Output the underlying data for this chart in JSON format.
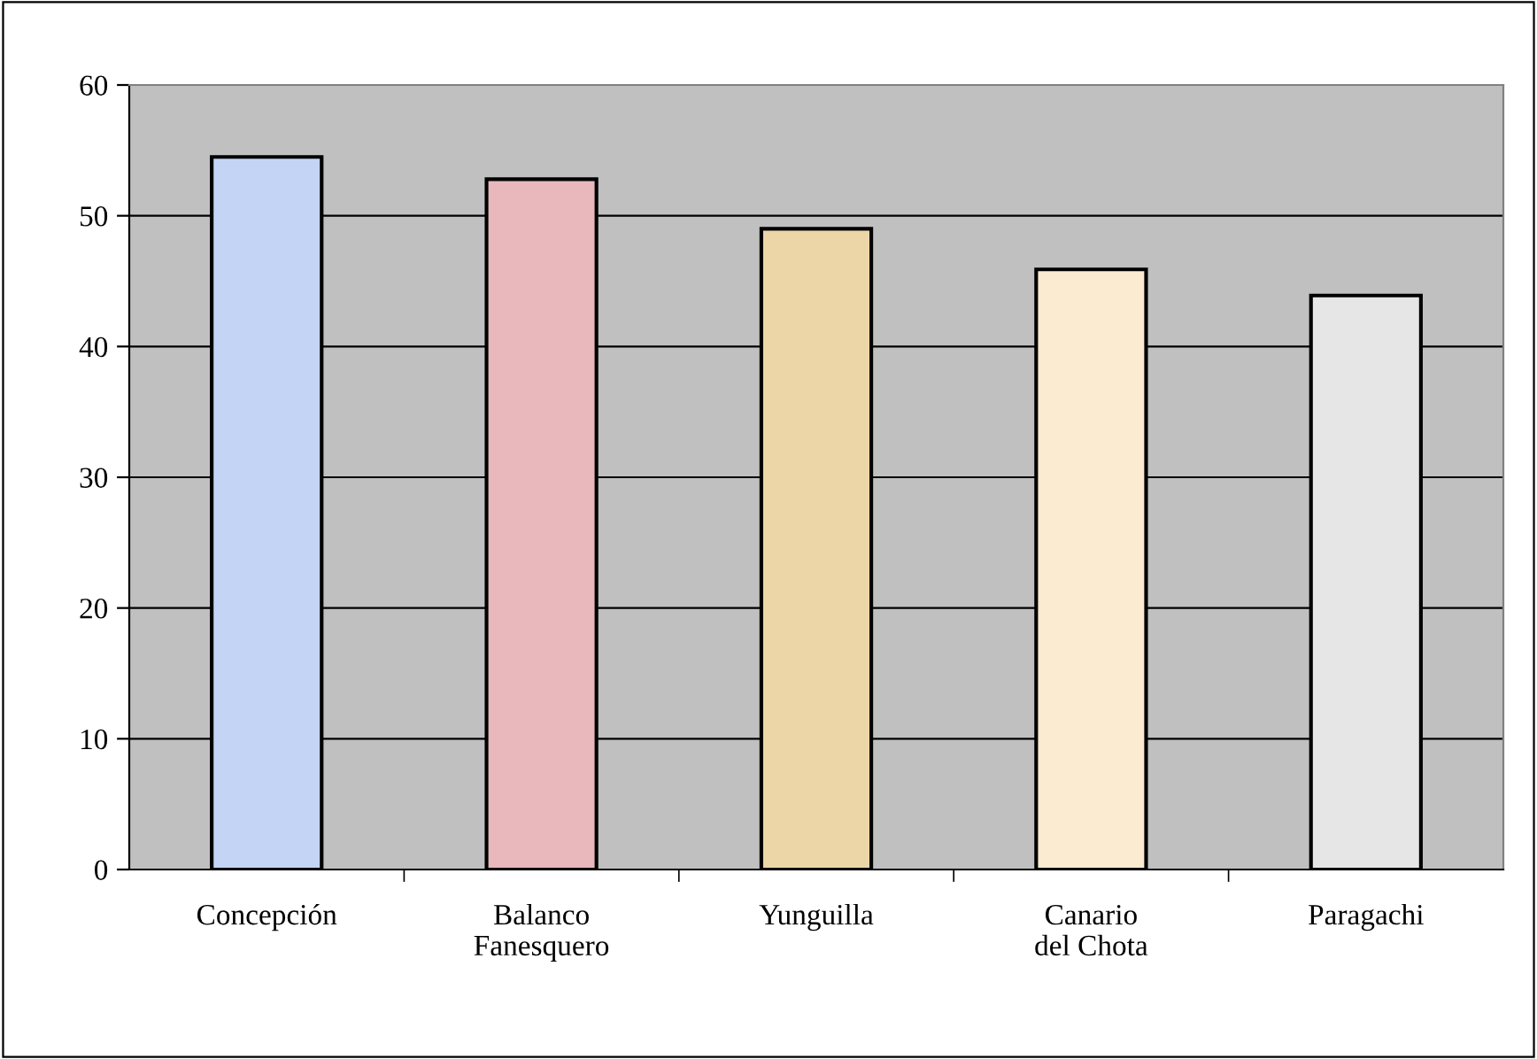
{
  "chart_data": {
    "type": "bar",
    "categories": [
      "Concepción",
      "Balanco\nFanesquero",
      "Yunguilla",
      "Canario\ndel Chota",
      "Paragachi"
    ],
    "values": [
      54.5,
      52.8,
      49.0,
      45.9,
      43.9
    ],
    "colors": [
      "#c4d4f4",
      "#e8b8bc",
      "#ecd6a8",
      "#fbebd0",
      "#e6e6e6"
    ],
    "ylim": [
      0,
      60
    ],
    "yticks": [
      0,
      10,
      20,
      30,
      40,
      50,
      60
    ],
    "grid": "y",
    "legend": false
  }
}
